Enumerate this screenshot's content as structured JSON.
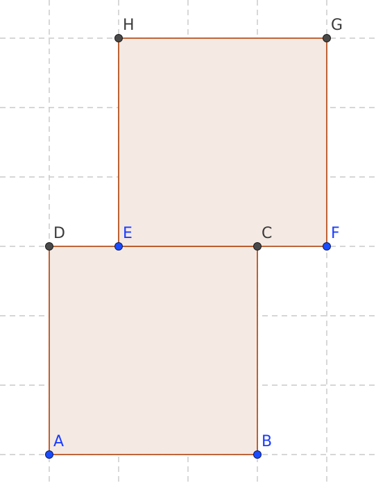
{
  "diagram": {
    "colors": {
      "grid": "#c8c8c8",
      "square_fill": "#f4e9e3",
      "square_stroke": "#b6521f",
      "free_point": "#1a4cff",
      "dependent_point": "#4a4a4a"
    },
    "squares": [
      {
        "name": "square-abcd",
        "vertices": [
          "A",
          "B",
          "C",
          "D"
        ]
      },
      {
        "name": "square-efgh",
        "vertices": [
          "E",
          "F",
          "G",
          "H"
        ]
      }
    ],
    "points": [
      {
        "label": "A",
        "x": 0,
        "y": 0,
        "kind": "free"
      },
      {
        "label": "B",
        "x": 3,
        "y": 0,
        "kind": "free"
      },
      {
        "label": "C",
        "x": 3,
        "y": 3,
        "kind": "dependent"
      },
      {
        "label": "D",
        "x": 0,
        "y": 3,
        "kind": "dependent"
      },
      {
        "label": "E",
        "x": 1,
        "y": 3,
        "kind": "free"
      },
      {
        "label": "F",
        "x": 4,
        "y": 3,
        "kind": "free"
      },
      {
        "label": "G",
        "x": 4,
        "y": 6,
        "kind": "dependent"
      },
      {
        "label": "H",
        "x": 1,
        "y": 6,
        "kind": "dependent"
      }
    ]
  }
}
